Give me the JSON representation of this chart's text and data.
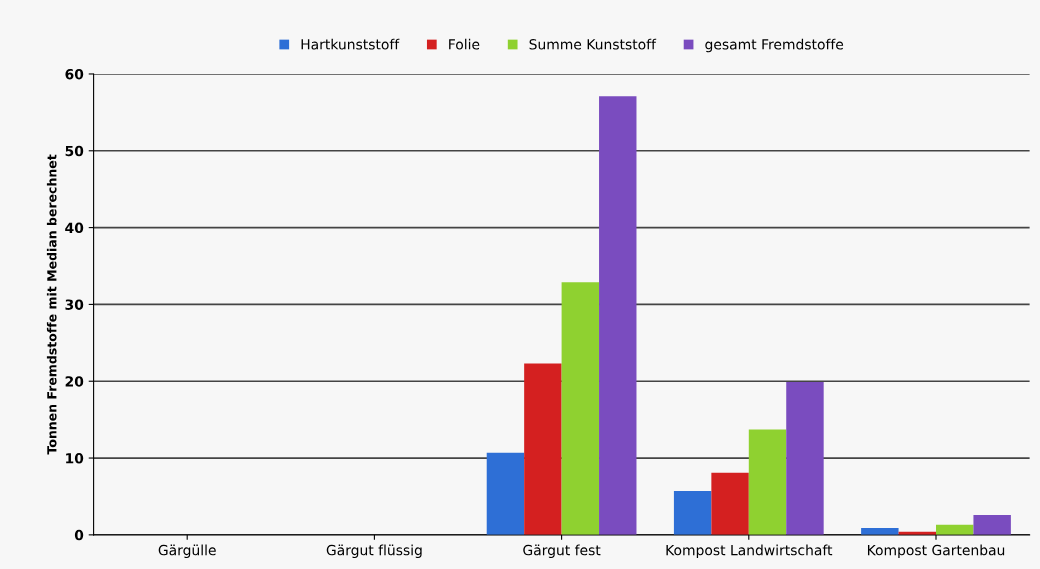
{
  "chart_data": {
    "type": "bar",
    "ylabel": "Tonnen Fremdstoffe mit Median berechnet",
    "categories": [
      "Gärgülle",
      "Gärgut flüssig",
      "Gärgut fest",
      "Kompost Landwirtschaft",
      "Kompost Gartenbau"
    ],
    "series": [
      {
        "name": "Hartkunststoff",
        "color": "#2e6fd6",
        "values": [
          0,
          0,
          10.7,
          5.7,
          0.9
        ]
      },
      {
        "name": "Folie",
        "color": "#d42020",
        "values": [
          0,
          0,
          22.3,
          8.1,
          0.4
        ]
      },
      {
        "name": "Summe Kunststoff",
        "color": "#8fd130",
        "values": [
          0,
          0,
          32.9,
          13.7,
          1.3
        ]
      },
      {
        "name": "gesamt Fremdstoffe",
        "color": "#7a4cbf",
        "values": [
          0,
          0,
          57.1,
          19.9,
          2.6
        ]
      }
    ],
    "ylim": [
      0,
      60
    ],
    "yticks": [
      0,
      10,
      20,
      30,
      40,
      50,
      60
    ],
    "grid": "y",
    "legend": "top"
  }
}
